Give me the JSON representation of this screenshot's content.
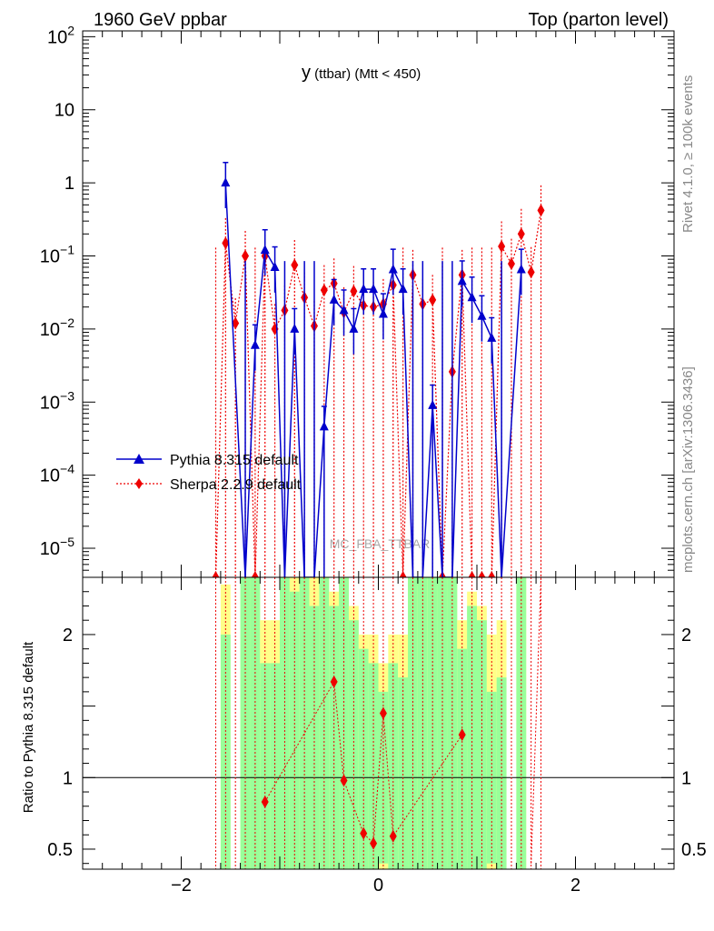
{
  "header": {
    "left": "1960 GeV ppbar",
    "right": "Top (parton level)"
  },
  "plot_title": {
    "main": "y",
    "sub": " (ttbar) (Mtt < 450)"
  },
  "side_labels": {
    "rivet": "Rivet 4.1.0, ≥ 100k events",
    "mcplots": "mcplots.cern.ch [arXiv:1306.3436]"
  },
  "watermark": "MC_FBA_TTBAR",
  "legend": {
    "pythia": "Pythia 8.315 default",
    "sherpa": "Sherpa 2.2.9 default"
  },
  "ratio_ylabel": "Ratio to Pythia 8.315 default",
  "colors": {
    "pythia": "#0000cc",
    "sherpa": "#ee0000",
    "band_green": "#99ff99",
    "band_yellow": "#ffff88"
  },
  "chart_data": [
    {
      "type": "line",
      "title": "y (ttbar) (Mtt < 450)",
      "xlabel": "",
      "ylabel": "",
      "xlim": [
        -3,
        3
      ],
      "ylim": [
        4e-06,
        120
      ],
      "yscale": "log",
      "y_tick_labels": [
        "10^-5",
        "10^-4",
        "10^-3",
        "10^-2",
        "10^-1",
        "1",
        "10",
        "10^2"
      ],
      "legend_position": "lower-left",
      "series": [
        {
          "name": "Pythia 8.315 default",
          "x": [
            -1.55,
            -1.35,
            -1.25,
            -1.15,
            -1.05,
            -0.95,
            -0.85,
            -0.75,
            -0.65,
            -0.55,
            -0.45,
            -0.35,
            -0.25,
            -0.15,
            -0.05,
            0.05,
            0.15,
            0.25,
            0.35,
            0.45,
            0.55,
            0.65,
            0.75,
            0.85,
            0.95,
            1.05,
            1.15,
            1.25,
            1.45
          ],
          "y": [
            1.0,
            4e-06,
            0.006,
            0.12,
            0.07,
            4e-06,
            0.01,
            4e-06,
            4e-06,
            0.00046,
            0.025,
            0.018,
            0.01,
            0.035,
            0.035,
            0.016,
            0.065,
            0.035,
            4e-06,
            4e-06,
            0.0009,
            4e-06,
            4e-06,
            0.045,
            0.027,
            0.015,
            0.0075,
            4e-06,
            0.065
          ]
        },
        {
          "name": "Sherpa 2.2.9 default",
          "x": [
            -1.65,
            -1.55,
            -1.45,
            -1.35,
            -1.25,
            -1.15,
            -1.05,
            -0.95,
            -0.85,
            -0.75,
            -0.65,
            -0.55,
            -0.45,
            -0.35,
            -0.25,
            -0.15,
            -0.05,
            0.05,
            0.15,
            0.25,
            0.35,
            0.45,
            0.55,
            0.65,
            0.75,
            0.85,
            0.95,
            1.05,
            1.15,
            1.25,
            1.35,
            1.45,
            1.55,
            1.65
          ],
          "y": [
            4e-06,
            0.15,
            0.012,
            0.1,
            4e-06,
            0.1,
            0.01,
            0.018,
            0.075,
            0.027,
            0.011,
            0.034,
            0.042,
            0.017,
            0.033,
            0.021,
            0.02,
            0.022,
            0.04,
            4e-06,
            0.055,
            0.022,
            0.025,
            4e-06,
            0.0026,
            0.055,
            4e-06,
            4e-06,
            4e-06,
            0.135,
            0.078,
            0.2,
            0.06,
            0.42
          ]
        }
      ]
    },
    {
      "type": "line",
      "title": "",
      "xlabel": "",
      "ylabel": "Ratio to Pythia 8.315 default",
      "xlim": [
        -3,
        3
      ],
      "ylim": [
        0.36,
        2.4
      ],
      "x_tick_labels": [
        "−2",
        "0",
        "2"
      ],
      "y_tick_labels": [
        "0.5",
        "1",
        "2"
      ],
      "reference_line": 1,
      "series": [
        {
          "name": "Sherpa 2.2.9 default / Pythia 8.315 default",
          "x": [
            -1.15,
            -0.45,
            -0.35,
            -0.15,
            -0.05,
            0.05,
            0.15,
            0.85
          ],
          "y": [
            0.83,
            1.67,
            0.98,
            0.61,
            0.54,
            1.45,
            0.59,
            1.3
          ]
        }
      ]
    }
  ]
}
